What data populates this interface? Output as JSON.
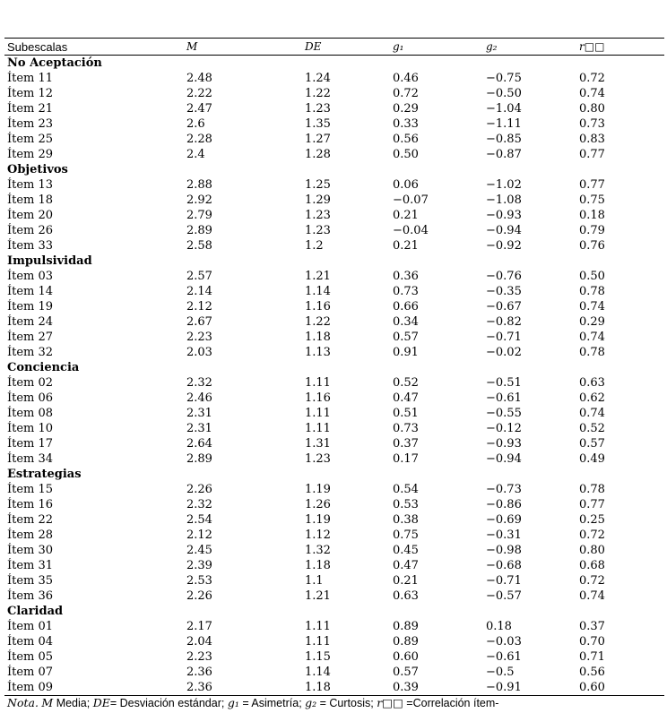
{
  "table": {
    "headers": [
      "Subescalas",
      "M",
      "DE",
      "g₁",
      "g₂",
      "r□□"
    ],
    "groups": [
      {
        "name": "No Aceptación",
        "rows": [
          [
            "Ítem 11",
            "2.48",
            "1.24",
            "0.46",
            "−0.75",
            "0.72"
          ],
          [
            "Ítem 12",
            "2.22",
            "1.22",
            "0.72",
            "−0.50",
            "0.74"
          ],
          [
            "Ítem 21",
            "2.47",
            "1.23",
            "0.29",
            "−1.04",
            "0.80"
          ],
          [
            "Ítem 23",
            "2.6",
            "1.35",
            "0.33",
            "−1.11",
            "0.73"
          ],
          [
            "Ítem 25",
            "2.28",
            "1.27",
            "0.56",
            "−0.85",
            "0.83"
          ],
          [
            "Ítem 29",
            "2.4",
            "1.28",
            "0.50",
            "−0.87",
            "0.77"
          ]
        ]
      },
      {
        "name": "Objetivos",
        "rows": [
          [
            "Ítem 13",
            "2.88",
            "1.25",
            "0.06",
            "−1.02",
            "0.77"
          ],
          [
            "Ítem 18",
            "2.92",
            "1.29",
            "−0.07",
            "−1.08",
            "0.75"
          ],
          [
            "Ítem 20",
            "2.79",
            "1.23",
            "0.21",
            "−0.93",
            "0.18"
          ],
          [
            "Ítem 26",
            "2.89",
            "1.23",
            "−0.04",
            "−0.94",
            "0.79"
          ],
          [
            "Ítem 33",
            "2.58",
            "1.2",
            "0.21",
            "−0.92",
            "0.76"
          ]
        ]
      },
      {
        "name": "Impulsividad",
        "rows": [
          [
            "Ítem 03",
            "2.57",
            "1.21",
            "0.36",
            "−0.76",
            "0.50"
          ],
          [
            "Ítem 14",
            "2.14",
            "1.14",
            "0.73",
            "−0.35",
            "0.78"
          ],
          [
            "Ítem 19",
            "2.12",
            "1.16",
            "0.66",
            "−0.67",
            "0.74"
          ],
          [
            "Ítem 24",
            "2.67",
            "1.22",
            "0.34",
            "−0.82",
            "0.29"
          ],
          [
            "Ítem 27",
            "2.23",
            "1.18",
            "0.57",
            "−0.71",
            "0.74"
          ],
          [
            "Ítem 32",
            "2.03",
            "1.13",
            "0.91",
            "−0.02",
            "0.78"
          ]
        ]
      },
      {
        "name": "Conciencia",
        "rows": [
          [
            "Ítem 02",
            "2.32",
            "1.11",
            "0.52",
            "−0.51",
            "0.63"
          ],
          [
            "Ítem 06",
            "2.46",
            "1.16",
            "0.47",
            "−0.61",
            "0.62"
          ],
          [
            "Ítem 08",
            "2.31",
            "1.11",
            "0.51",
            "−0.55",
            "0.74"
          ],
          [
            "Ítem 10",
            "2.31",
            "1.11",
            "0.73",
            "−0.12",
            "0.52"
          ],
          [
            "Ítem 17",
            "2.64",
            "1.31",
            "0.37",
            "−0.93",
            "0.57"
          ],
          [
            "Ítem 34",
            "2.89",
            "1.23",
            "0.17",
            "−0.94",
            "0.49"
          ]
        ]
      },
      {
        "name": "Estrategias",
        "rows": [
          [
            "Ítem 15",
            "2.26",
            "1.19",
            "0.54",
            "−0.73",
            "0.78"
          ],
          [
            "Ítem 16",
            "2.32",
            "1.26",
            "0.53",
            "−0.86",
            "0.77"
          ],
          [
            "Ítem 22",
            "2.54",
            "1.19",
            "0.38",
            "−0.69",
            "0.25"
          ],
          [
            "Ítem 28",
            "2.12",
            "1.12",
            "0.75",
            "−0.31",
            "0.72"
          ],
          [
            "Ítem 30",
            "2.45",
            "1.32",
            "0.45",
            "−0.98",
            "0.80"
          ],
          [
            "Ítem 31",
            "2.39",
            "1.18",
            "0.47",
            "−0.68",
            "0.68"
          ],
          [
            "Ítem 35",
            "2.53",
            "1.1",
            "0.21",
            "−0.71",
            "0.72"
          ],
          [
            "Ítem 36",
            "2.26",
            "1.21",
            "0.63",
            "−0.57",
            "0.74"
          ]
        ]
      },
      {
        "name": "Claridad",
        "rows": [
          [
            "Ítem 01",
            "2.17",
            "1.11",
            "0.89",
            "0.18",
            "0.37"
          ],
          [
            "Ítem 04",
            "2.04",
            "1.11",
            "0.89",
            "−0.03",
            "0.70"
          ],
          [
            "Ítem 05",
            "2.23",
            "1.15",
            "0.60",
            "−0.61",
            "0.71"
          ],
          [
            "Ítem 07",
            "2.36",
            "1.14",
            "0.57",
            "−0.5",
            "0.56"
          ],
          [
            "Ítem 09",
            "2.36",
            "1.18",
            "0.39",
            "−0.91",
            "0.60"
          ]
        ]
      }
    ]
  },
  "note": {
    "lead": "Nota.",
    "text_1": " ",
    "m_sym": "M",
    "text_2": " Media; ",
    "de_sym": "DE",
    "text_3": "= Desviación estándar; ",
    "g1_sym": "g₁",
    "text_4": " = Asimetría; ",
    "g2_sym": "g₂",
    "text_5": " = Curtosis; ",
    "r_sym": "r□□",
    "text_6": " =Correlación ítem-"
  }
}
